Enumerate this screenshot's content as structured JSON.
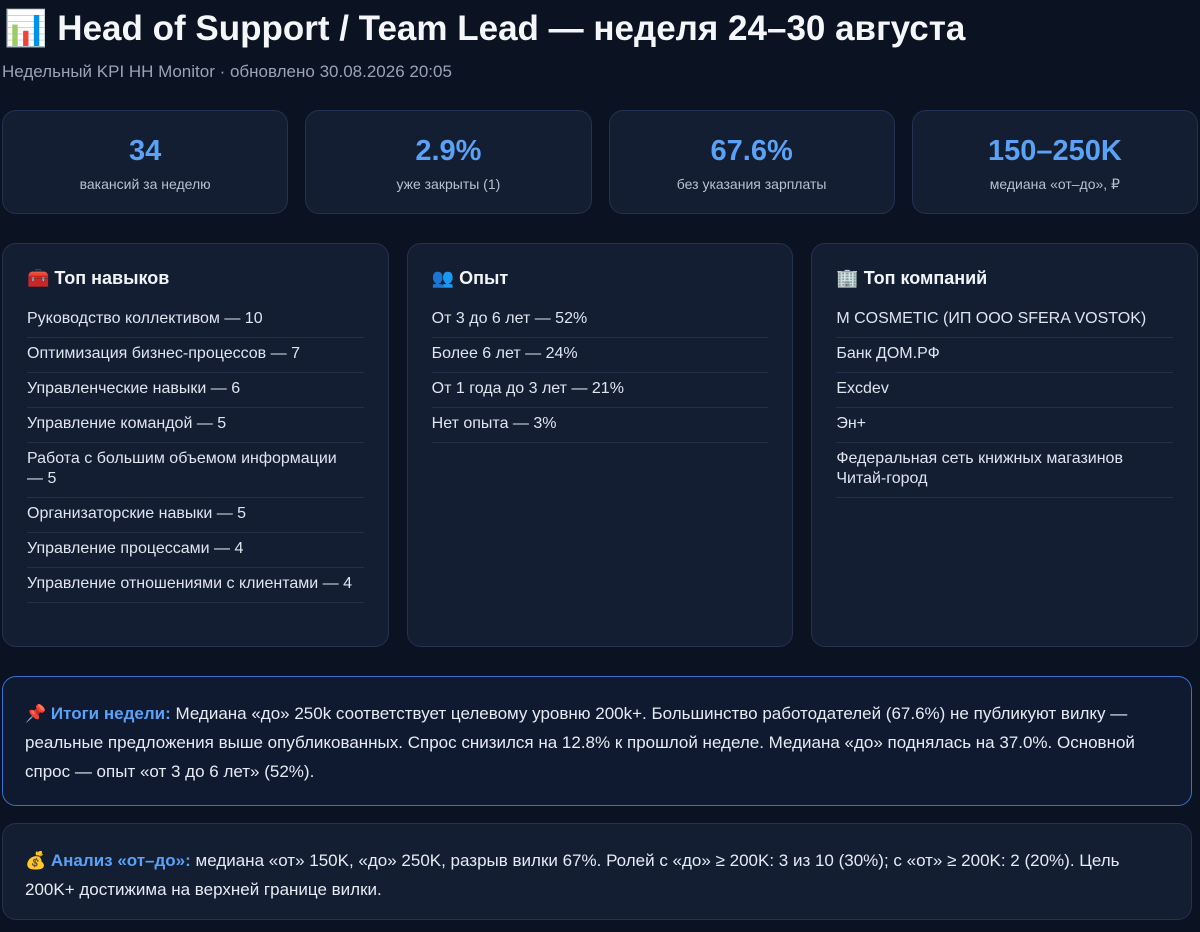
{
  "header": {
    "title": "📊 Head of Support / Team Lead — неделя 24–30 августа",
    "subtitle": "Недельный KPI HH Monitor · обновлено 30.08.2026 20:05"
  },
  "kpis": [
    {
      "value": "34",
      "label": "вакансий за неделю"
    },
    {
      "value": "2.9%",
      "label": "уже закрыты (1)"
    },
    {
      "value": "67.6%",
      "label": "без указания зарплаты"
    },
    {
      "value": "150–250K",
      "label": "медиана «от–до», ₽"
    }
  ],
  "panels": [
    {
      "title": "🧰 Топ навыков",
      "items": [
        "Руководство коллективом — 10",
        "Оптимизация бизнес-процессов — 7",
        "Управленческие навыки — 6",
        "Управление командой — 5",
        "Работа с большим объемом информации — 5",
        "Организаторские навыки — 5",
        "Управление процессами — 4",
        "Управление отношениями с клиентами — 4"
      ]
    },
    {
      "title": "👥 Опыт",
      "items": [
        "От 3 до 6 лет — 52%",
        "Более 6 лет — 24%",
        "От 1 года до 3 лет — 21%",
        "Нет опыта — 3%"
      ]
    },
    {
      "title": "🏢 Топ компаний",
      "items": [
        "M COSMETIC (ИП ООО SFERA VOSTOK)",
        "Банк ДОМ.РФ",
        "Excdev",
        "Эн+",
        "Федеральная сеть книжных магазинов Читай-город"
      ]
    }
  ],
  "summary": {
    "label": "📌 Итоги недели:",
    "text": "Медиана «до» 250k соответствует целевому уровню 200k+. Большинство работодателей (67.6%) не публикуют вилку — реальные предложения выше опубликованных. Спрос снизился на 12.8% к прошлой неделе. Медиана «до» поднялась на 37.0%. Основной спрос — опыт «от 3 до 6 лет» (52%)."
  },
  "analysis": {
    "label": "💰 Анализ «от–до»:",
    "text": "медиана «от» 150K, «до» 250K, разрыв вилки 67%. Ролей с «до» ≥ 200K: 3 из 10 (30%); с «от» ≥ 200K: 2 (20%). Цель 200K+ достижима на верхней границе вилки."
  }
}
